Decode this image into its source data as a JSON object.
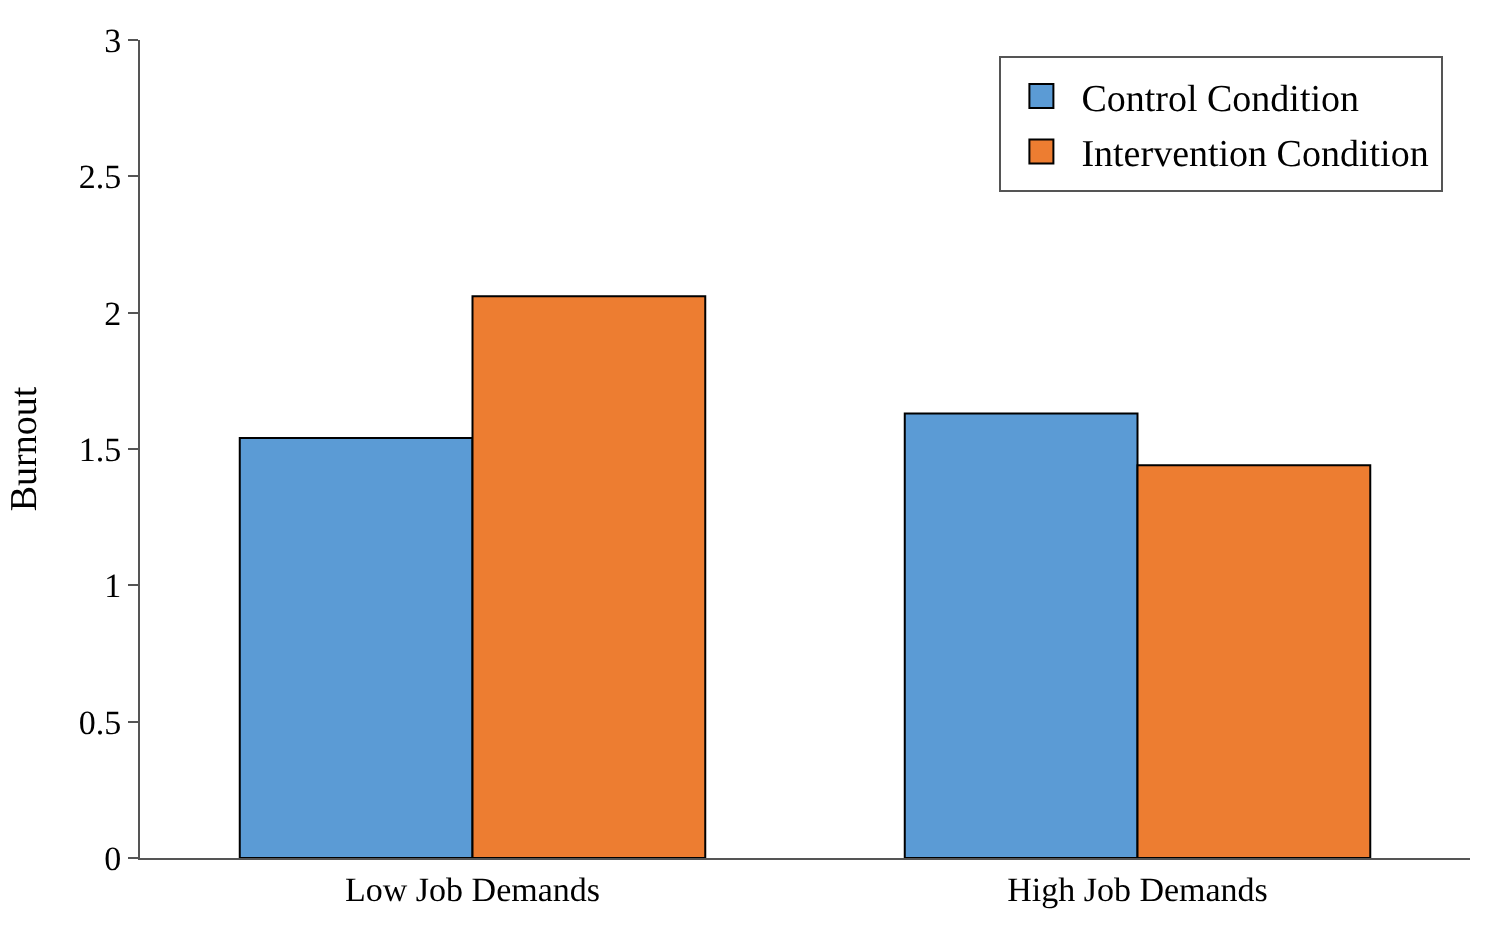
{
  "chart_data": {
    "type": "bar",
    "ylabel": "Burnout",
    "categories": [
      "Low Job Demands",
      "High Job Demands"
    ],
    "series": [
      {
        "name": "Control Condition",
        "color": "#5b9bd5",
        "values": [
          1.54,
          1.63
        ]
      },
      {
        "name": "Intervention Condition",
        "color": "#ed7d31",
        "values": [
          2.06,
          1.44
        ]
      }
    ],
    "ylim": [
      0,
      3
    ],
    "yticks": [
      0,
      0.5,
      1,
      1.5,
      2,
      2.5,
      3
    ],
    "grid": false,
    "legend": "top right"
  }
}
